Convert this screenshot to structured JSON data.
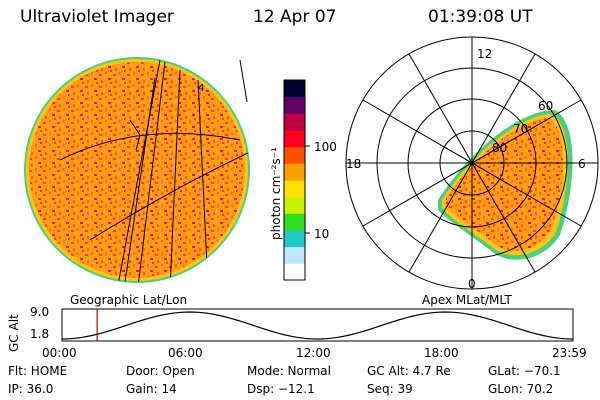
{
  "header": {
    "instrument": "Ultraviolet Imager",
    "date": "12 Apr 07",
    "time": "01:39:08 UT"
  },
  "left_image": {
    "label": "Geographic Lat/Lon",
    "marker": "4"
  },
  "right_image": {
    "label": "Apex MLat/MLT",
    "mlt_labels": [
      "12",
      "18",
      "6",
      "0"
    ],
    "lat_labels": [
      "60",
      "70",
      "80"
    ]
  },
  "colorbar": {
    "unit": "photon cm⁻²s⁻¹",
    "ticks": [
      "100",
      "10"
    ],
    "scale": "log",
    "colors": [
      "#ffffff",
      "#bfe8ff",
      "#20c8c8",
      "#30e020",
      "#c8f000",
      "#ffe000",
      "#ffa000",
      "#ff5000",
      "#ff0020",
      "#c00040",
      "#600060",
      "#000030"
    ]
  },
  "orbit_plot": {
    "ylabel": "GC Alt",
    "yticks": [
      "9.0",
      "1.8"
    ],
    "xticks": [
      "00:00",
      "06:00",
      "12:00",
      "18:00",
      "23:59"
    ],
    "current_time_hours": 1.65,
    "cursor_color": "#c00000"
  },
  "status": {
    "row1": [
      "Flt: HOME",
      "Door: Open",
      "Mode: Normal",
      "GC Alt: 4.7 Re",
      "GLat: −70.1"
    ],
    "row2": [
      "IP: 36.0",
      "Gain: 14",
      "Dsp:  −12.1",
      "Seq: 39",
      "GLon:  70.2"
    ]
  }
}
